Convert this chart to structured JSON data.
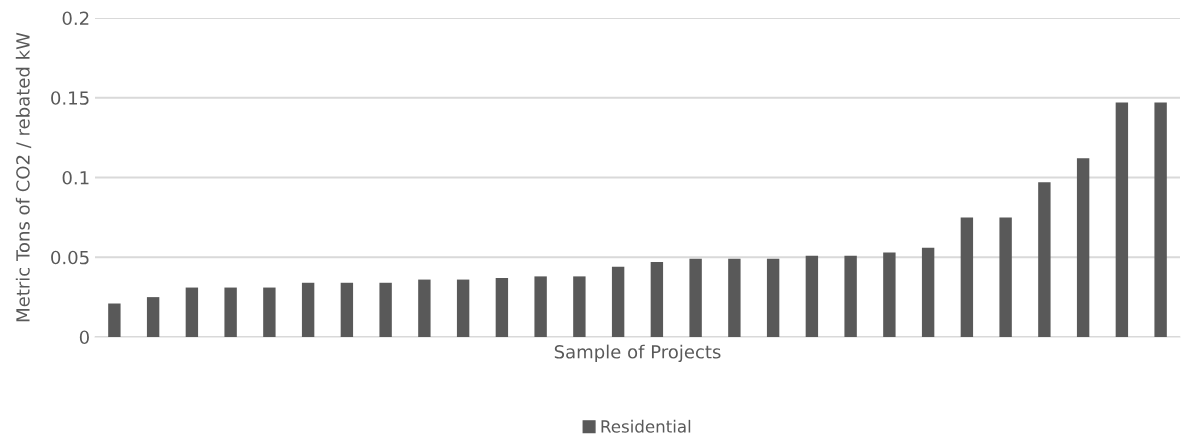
{
  "chart_data": {
    "type": "bar",
    "xlabel": "Sample of Projects",
    "ylabel": "Metric Tons of CO2 / rebated kW",
    "categories": [
      null,
      null,
      null,
      null,
      null,
      null,
      null,
      null,
      null,
      null,
      null,
      null,
      null,
      null,
      null,
      null,
      null,
      null,
      null,
      null,
      null,
      null,
      null,
      null,
      null,
      null,
      null,
      null
    ],
    "series": [
      {
        "name": "Residential",
        "color": "#595959",
        "values": [
          0.021,
          0.025,
          0.031,
          0.031,
          0.031,
          0.034,
          0.034,
          0.034,
          0.036,
          0.036,
          0.037,
          0.038,
          0.038,
          0.044,
          0.047,
          0.049,
          0.049,
          0.049,
          0.051,
          0.051,
          0.053,
          0.056,
          0.075,
          0.075,
          0.097,
          0.112,
          0.147,
          0.147
        ]
      }
    ],
    "ylim": [
      0,
      0.2
    ],
    "yticks": [
      0,
      0.05,
      0.1,
      0.15,
      0.2
    ],
    "grid": "y",
    "legend": "bottom"
  }
}
